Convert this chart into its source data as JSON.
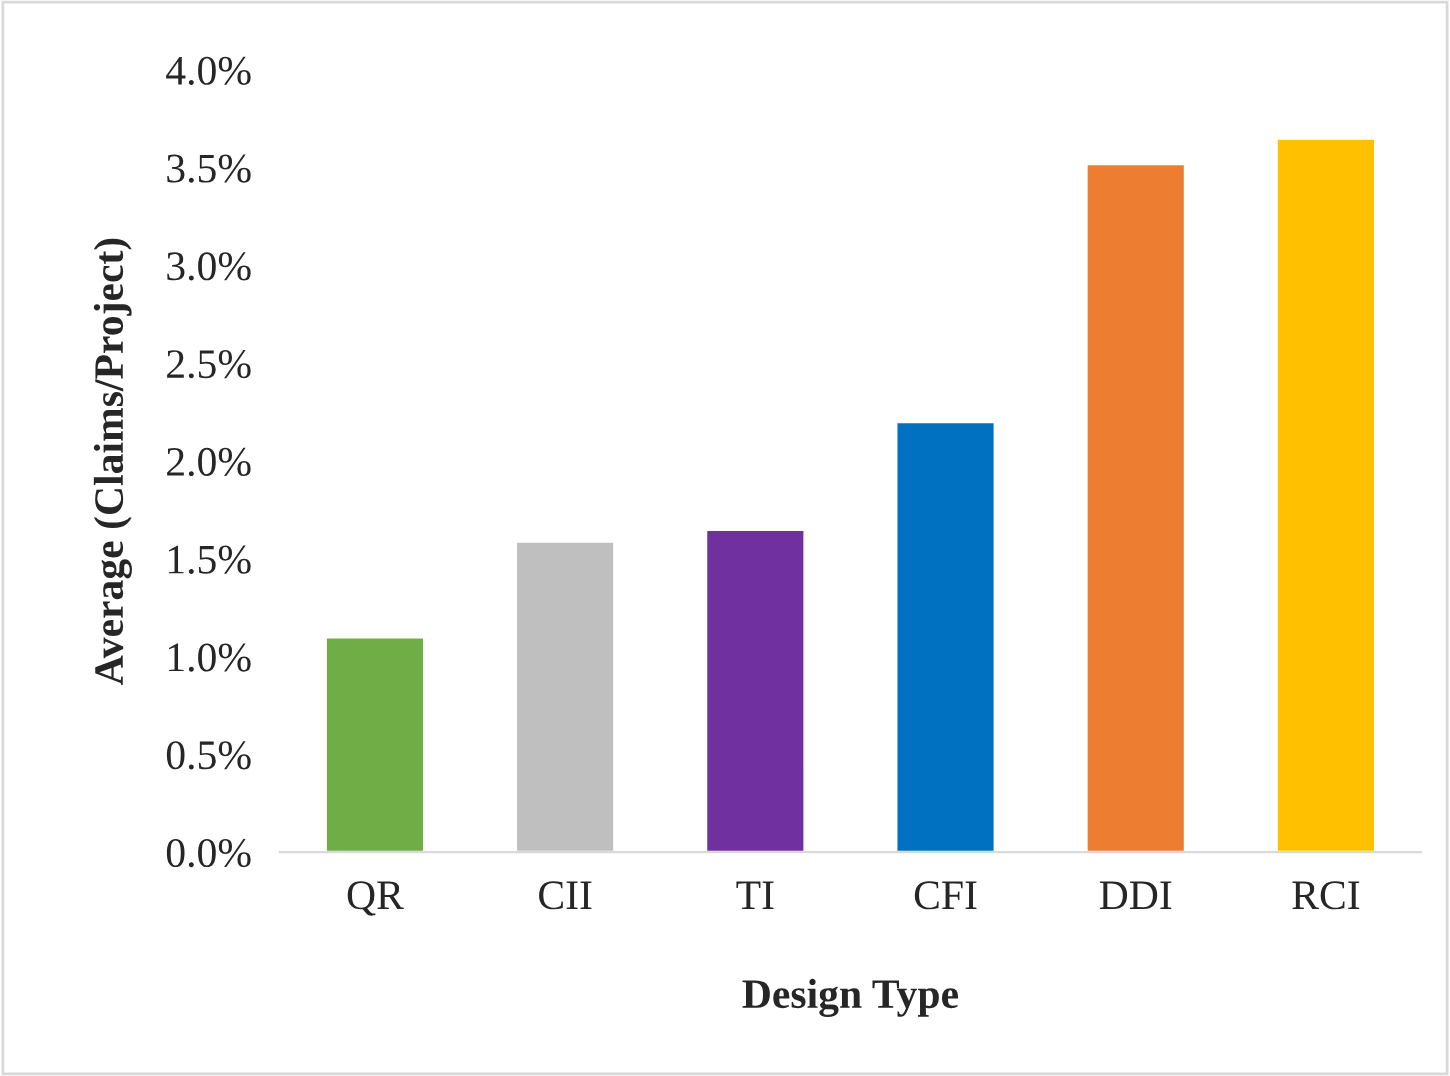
{
  "chart_data": {
    "type": "bar",
    "xlabel": "Design Type",
    "ylabel": "Average (Claims/Project)",
    "categories": [
      "QR",
      "CII",
      "TI",
      "CFI",
      "DDI",
      "RCI"
    ],
    "values": [
      1.1,
      1.59,
      1.65,
      2.2,
      3.52,
      3.65
    ],
    "colors": [
      "#70ad47",
      "#bfbfbf",
      "#7030a0",
      "#0070c0",
      "#ed7d31",
      "#ffc000"
    ],
    "ylim": [
      0,
      4
    ],
    "yticks": [
      {
        "value": 0,
        "label": "0.0%"
      },
      {
        "value": 0.5,
        "label": "0.5%"
      },
      {
        "value": 1,
        "label": "1.0%"
      },
      {
        "value": 1.5,
        "label": "1.5%"
      },
      {
        "value": 2,
        "label": "2.0%"
      },
      {
        "value": 2.5,
        "label": "2.5%"
      },
      {
        "value": 3,
        "label": "3.0%"
      },
      {
        "value": 3.5,
        "label": "3.5%"
      },
      {
        "value": 4,
        "label": "4.0%"
      }
    ],
    "grid": false,
    "legend": false
  }
}
